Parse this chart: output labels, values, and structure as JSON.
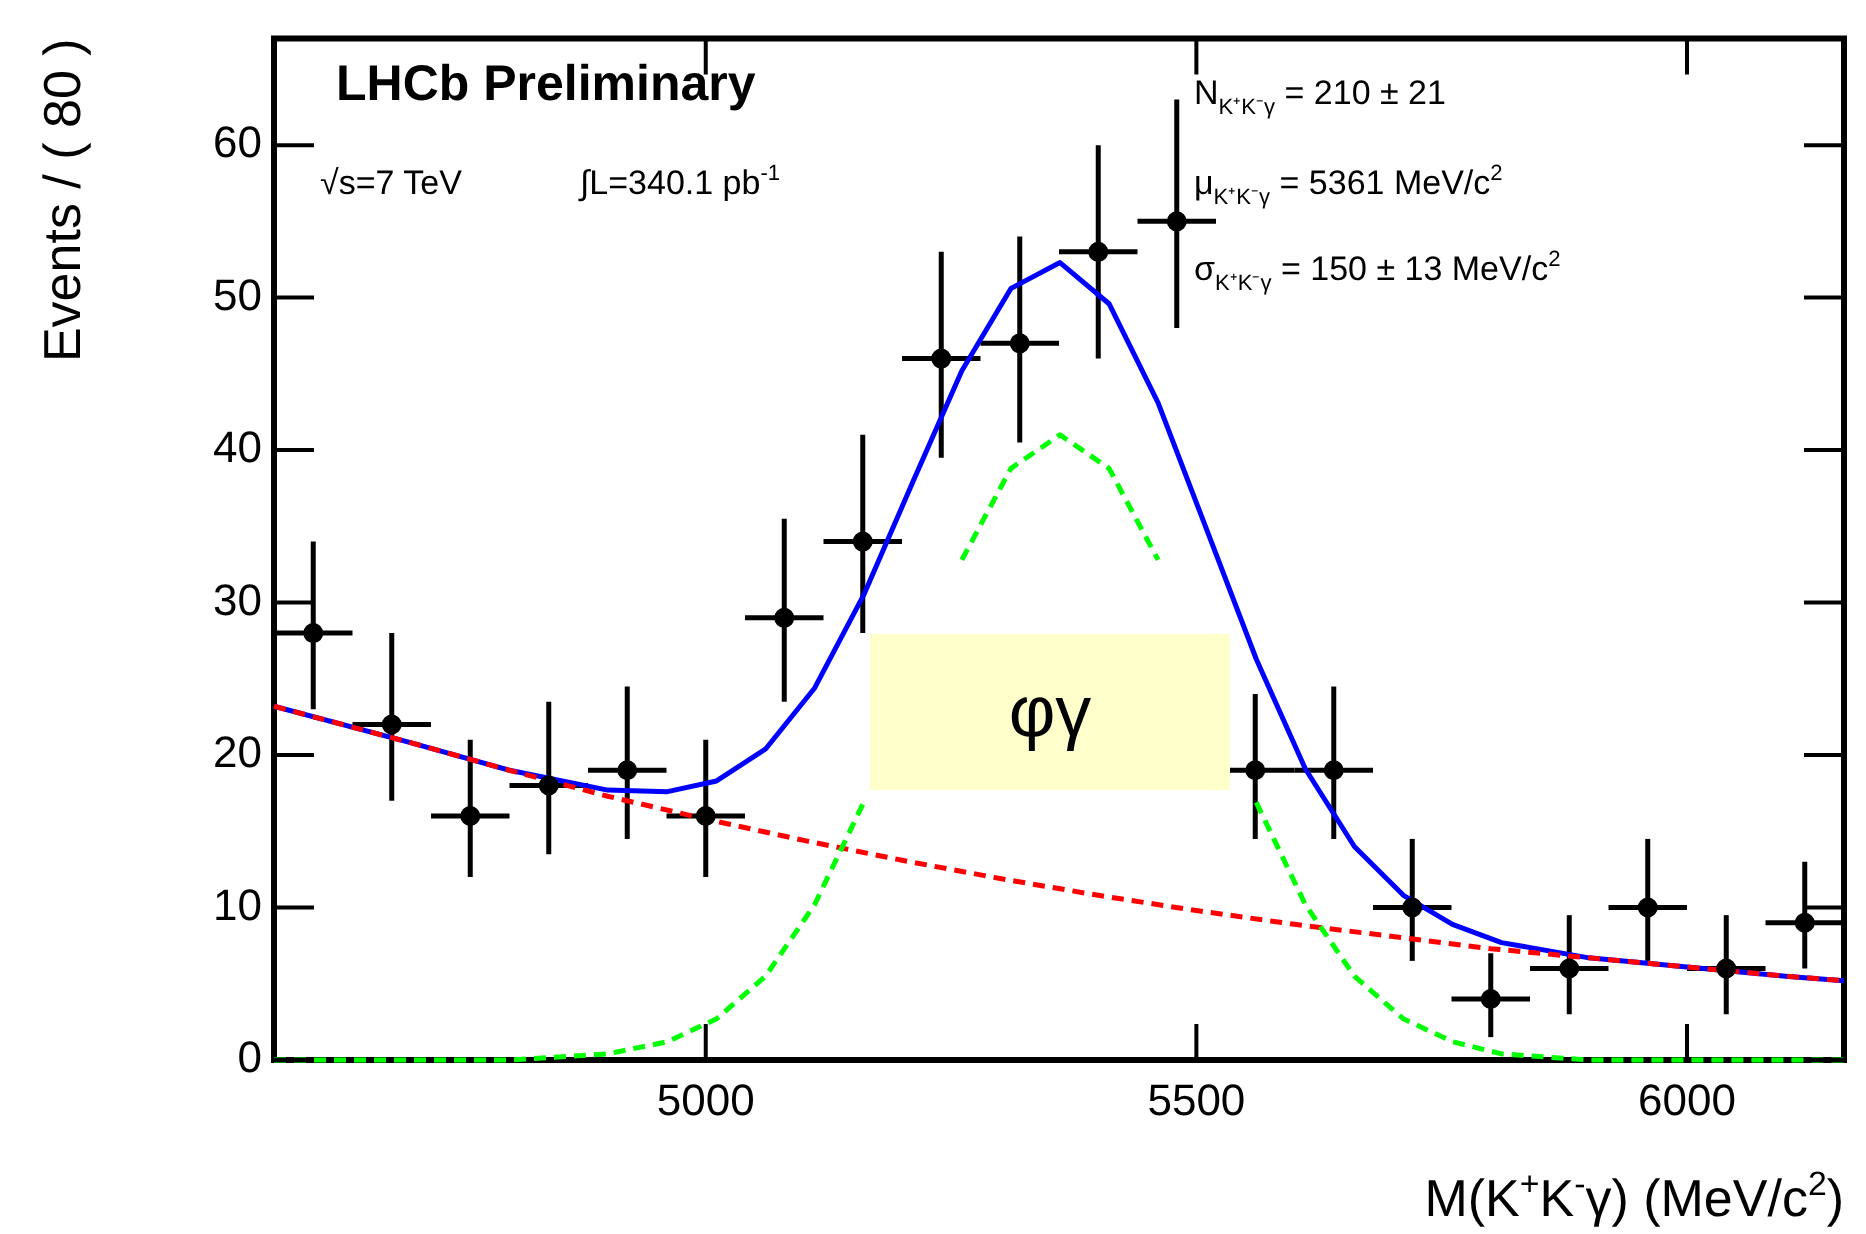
{
  "chart_data": {
    "type": "scatter",
    "xlabel": "M(K$^{+}$K$^{-}$γ) (MeV/c$^{2}$)",
    "ylabel": "Events / ( 80 )",
    "xlim": [
      4560,
      6160
    ],
    "ylim": [
      0,
      67
    ],
    "xticks": [
      5000,
      5500,
      6000
    ],
    "yticks": [
      0,
      10,
      20,
      30,
      40,
      50,
      60
    ],
    "grid": false,
    "legend": false,
    "series": [
      {
        "type": "scatter",
        "color": "#000000",
        "marker": "circle",
        "x": [
          4600,
          4680,
          4760,
          4840,
          4920,
          5000,
          5080,
          5160,
          5240,
          5320,
          5400,
          5480,
          5560,
          5640,
          5720,
          5800,
          5880,
          5960,
          6040,
          6120
        ],
        "values": [
          28,
          22,
          16,
          18,
          19,
          16,
          29,
          34,
          46,
          47,
          53,
          55,
          19,
          19,
          10,
          4,
          6,
          10,
          6,
          9
        ],
        "errors": [
          [
            23,
            34
          ],
          [
            17,
            28
          ],
          [
            12,
            21
          ],
          [
            13.5,
            23.5
          ],
          [
            14.5,
            24.5
          ],
          [
            12,
            21
          ],
          [
            23.5,
            35.5
          ],
          [
            28,
            41
          ],
          [
            39.5,
            53
          ],
          [
            40.5,
            54
          ],
          [
            46,
            60
          ],
          [
            48,
            63
          ],
          [
            14.5,
            24
          ],
          [
            14.5,
            24.5
          ],
          [
            6.5,
            14.5
          ],
          [
            1.5,
            7
          ],
          [
            3,
            9.5
          ],
          [
            6.5,
            14.5
          ],
          [
            3,
            9.5
          ],
          [
            6,
            13
          ]
        ],
        "xerrors": [
          40,
          40,
          40,
          40,
          40,
          40,
          40,
          40,
          40,
          40,
          40,
          40,
          40,
          40,
          40,
          40,
          40,
          40,
          40,
          40
        ]
      },
      {
        "type": "line",
        "color": "#0000ff",
        "marker": "none",
        "line_style": "solid",
        "x": [
          4560,
          4700,
          4800,
          4900,
          4961,
          5011,
          5061,
          5111,
          5161,
          5211,
          5261,
          5311,
          5361,
          5411,
          5461,
          5511,
          5561,
          5611,
          5661,
          5711,
          5761,
          5811,
          5900,
          6000,
          6100,
          6160
        ],
        "values": [
          23.2,
          20.8,
          19.0,
          17.7,
          17.6,
          18.3,
          20.4,
          24.4,
          30.5,
          37.9,
          45.2,
          50.6,
          52.3,
          49.6,
          43.1,
          34.7,
          26.3,
          19.1,
          14.0,
          10.8,
          8.9,
          7.7,
          6.7,
          6.1,
          5.5,
          5.2
        ]
      },
      {
        "type": "line",
        "color": "#ff0000",
        "marker": "none",
        "line_style": "dashed",
        "x": [
          4560,
          4700,
          4800,
          4900,
          5000,
          5100,
          5200,
          5300,
          5400,
          5500,
          5600,
          5700,
          5800,
          5900,
          6000,
          6100,
          6160
        ],
        "values": [
          23.2,
          20.8,
          19.0,
          17.3,
          15.8,
          14.4,
          13.1,
          11.9,
          10.8,
          9.8,
          8.9,
          8.1,
          7.3,
          6.7,
          6.1,
          5.5,
          5.2
        ]
      },
      {
        "type": "line",
        "color": "#00ff00",
        "marker": "none",
        "line_style": "dashed",
        "x": [
          4560,
          4800,
          4900,
          4961,
          5011,
          5061,
          5111,
          5161,
          5211,
          5261,
          5311,
          5361,
          5411,
          5461,
          5511,
          5561,
          5611,
          5661,
          5711,
          5761,
          5811,
          5900,
          6160
        ],
        "values": [
          0,
          0,
          0.4,
          1.2,
          2.7,
          5.5,
          10.2,
          16.9,
          null,
          32.8,
          38.8,
          41,
          38.8,
          32.8,
          null,
          16.9,
          10.2,
          5.5,
          2.7,
          1.2,
          0.4,
          0,
          0
        ]
      }
    ],
    "annotations": [
      "LHCb Preliminary",
      "√s=7 TeV",
      "∫L=340.1 pb$^{-1}$",
      "N$_{K⁺K⁻γ}$ = 210 ± 21",
      "μ$_{K⁺K⁻γ}$ = 5361 MeV/c$^{2}$",
      "σ$_{K⁺K⁻γ}$ = 150 ± 13 MeV/c$^{2}$",
      "φγ"
    ]
  }
}
